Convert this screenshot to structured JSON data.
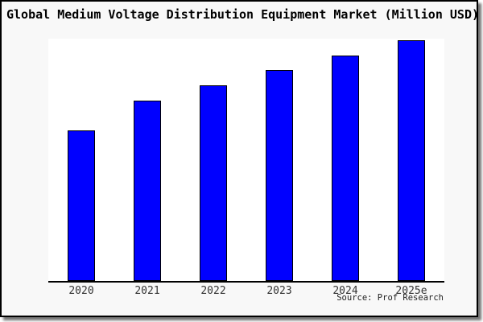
{
  "figure": {
    "title": "Global Medium Voltage Distribution Equipment Market (Million USD)",
    "source": "Source: Prof Research"
  },
  "colors": {
    "bar_fill": "#0000ff",
    "bar_edge": "#000000",
    "figure_background": "#f8f8f8",
    "plot_background": "#ffffff",
    "axis": "#000000",
    "tick_label": "#333333",
    "title_text": "#000000",
    "frame_border": "#000000",
    "shadow": "#888888"
  },
  "chart_data": {
    "type": "bar",
    "title": "Global Medium Voltage Distribution Equipment Market (Million USD)",
    "categories": [
      "2020",
      "2021",
      "2022",
      "2023",
      "2024",
      "2025e"
    ],
    "values": [
      62.7,
      75.2,
      81.5,
      87.9,
      94.0,
      100.3
    ],
    "values_note": "No y-axis ticks or data labels are shown; values are estimated relative index with 2025e ≈ 100 (tallest bar nearly touches plot top).",
    "unit": "Million USD",
    "xlabel": "",
    "ylabel": "",
    "ylim": [
      0,
      101
    ],
    "grid": false,
    "legend": null,
    "annotations": [
      "Source: Prof Research"
    ]
  }
}
